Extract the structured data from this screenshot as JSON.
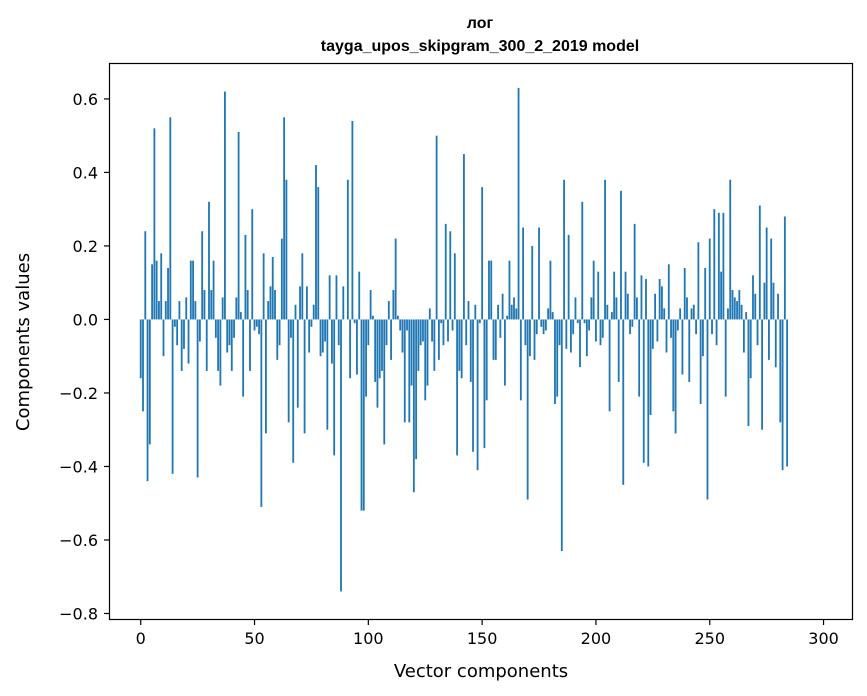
{
  "chart_data": {
    "type": "bar",
    "title": "лог",
    "subtitle": "tayga_upos_skipgram_300_2_2019 model",
    "xlabel": "Vector components",
    "ylabel": "Components values",
    "xlim": [
      -13.5,
      312.5
    ],
    "ylim": [
      -0.815,
      0.695
    ],
    "xticks": [
      0,
      50,
      100,
      150,
      200,
      250,
      300
    ],
    "yticks": [
      -0.8,
      -0.6,
      -0.4,
      -0.2,
      0.0,
      0.2,
      0.4,
      0.6
    ],
    "ytick_labels": [
      "−0.8",
      "−0.6",
      "−0.4",
      "−0.2",
      "0.0",
      "0.2",
      "0.4",
      "0.6"
    ],
    "bar_color": "#1f77b4",
    "values": [
      -0.16,
      -0.25,
      0.24,
      -0.44,
      -0.34,
      0.15,
      0.52,
      0.16,
      0.05,
      0.18,
      -0.1,
      0.05,
      0.14,
      0.55,
      -0.42,
      -0.02,
      -0.07,
      0.05,
      -0.14,
      -0.08,
      0.06,
      -0.12,
      0.16,
      0.16,
      0.05,
      -0.43,
      -0.06,
      0.24,
      0.08,
      -0.14,
      0.32,
      0.08,
      0.16,
      -0.05,
      -0.14,
      -0.18,
      0.06,
      0.62,
      -0.09,
      -0.07,
      -0.14,
      -0.05,
      0.06,
      0.51,
      0.02,
      -0.21,
      0.23,
      0.08,
      -0.14,
      0.3,
      -0.03,
      -0.02,
      -0.04,
      -0.51,
      0.18,
      -0.31,
      0.05,
      0.09,
      0.17,
      0.08,
      -0.11,
      -0.07,
      0.22,
      0.55,
      0.38,
      -0.28,
      -0.05,
      -0.39,
      0.04,
      -0.24,
      0.09,
      0.18,
      -0.31,
      0.09,
      -0.09,
      -0.02,
      0.04,
      0.42,
      0.36,
      -0.1,
      -0.09,
      -0.06,
      -0.3,
      0.12,
      -0.12,
      -0.37,
      0.12,
      -0.07,
      -0.74,
      0.09,
      0.0,
      0.38,
      -0.16,
      0.54,
      -0.01,
      -0.15,
      0.13,
      -0.52,
      -0.52,
      -0.21,
      -0.07,
      0.08,
      0.01,
      -0.17,
      -0.24,
      -0.16,
      -0.14,
      -0.34,
      -0.07,
      0.05,
      -0.11,
      0.08,
      0.22,
      0.01,
      -0.03,
      -0.09,
      -0.28,
      -0.03,
      -0.28,
      -0.18,
      -0.47,
      -0.38,
      -0.14,
      -0.07,
      -0.06,
      -0.22,
      -0.18,
      0.03,
      -0.06,
      -0.14,
      0.5,
      -0.11,
      -0.01,
      -0.07,
      0.26,
      -0.06,
      0.24,
      -0.03,
      0.18,
      -0.37,
      -0.14,
      -0.16,
      0.45,
      -0.07,
      0.05,
      -0.17,
      -0.36,
      0.04,
      -0.41,
      -0.01,
      0.36,
      -0.35,
      -0.22,
      0.16,
      0.16,
      -0.11,
      -0.11,
      0.04,
      -0.05,
      0.07,
      -0.18,
      0.01,
      0.16,
      0.04,
      0.06,
      0.03,
      0.63,
      -0.22,
      0.25,
      -0.07,
      -0.49,
      -0.1,
      0.2,
      -0.11,
      -0.04,
      0.25,
      -0.02,
      -0.04,
      -0.03,
      0.03,
      0.16,
      0.02,
      -0.23,
      -0.21,
      -0.07,
      -0.63,
      0.38,
      -0.08,
      0.23,
      -0.09,
      -0.04,
      0.06,
      -0.01,
      -0.13,
      0.32,
      -0.01,
      -0.1,
      -0.03,
      0.06,
      0.16,
      -0.06,
      0.13,
      -0.07,
      -0.05,
      0.38,
      0.04,
      -0.25,
      0.02,
      0.13,
      0.06,
      -0.17,
      0.35,
      -0.45,
      0.13,
      0.07,
      -0.04,
      -0.02,
      0.26,
      0.06,
      -0.21,
      0.12,
      -0.39,
      0.11,
      -0.4,
      -0.26,
      -0.08,
      0.07,
      -0.06,
      0.11,
      0.09,
      0.03,
      -0.09,
      0.15,
      -0.05,
      -0.25,
      -0.31,
      -0.03,
      0.03,
      -0.15,
      0.14,
      0.06,
      -0.17,
      0.03,
      0.04,
      -0.04,
      0.21,
      -0.23,
      -0.1,
      0.14,
      -0.49,
      0.22,
      -0.04,
      0.3,
      -0.07,
      0.29,
      0.13,
      0.29,
      -0.21,
      0.03,
      0.38,
      0.08,
      0.06,
      0.05,
      0.08,
      0.04,
      -0.09,
      0.02,
      -0.29,
      -0.16,
      0.12,
      0.07,
      -0.07,
      0.31,
      -0.3,
      0.1,
      0.25,
      -0.11,
      0.22,
      0.1,
      -0.13,
      0.07,
      -0.28,
      -0.41,
      0.28,
      -0.4
    ]
  }
}
